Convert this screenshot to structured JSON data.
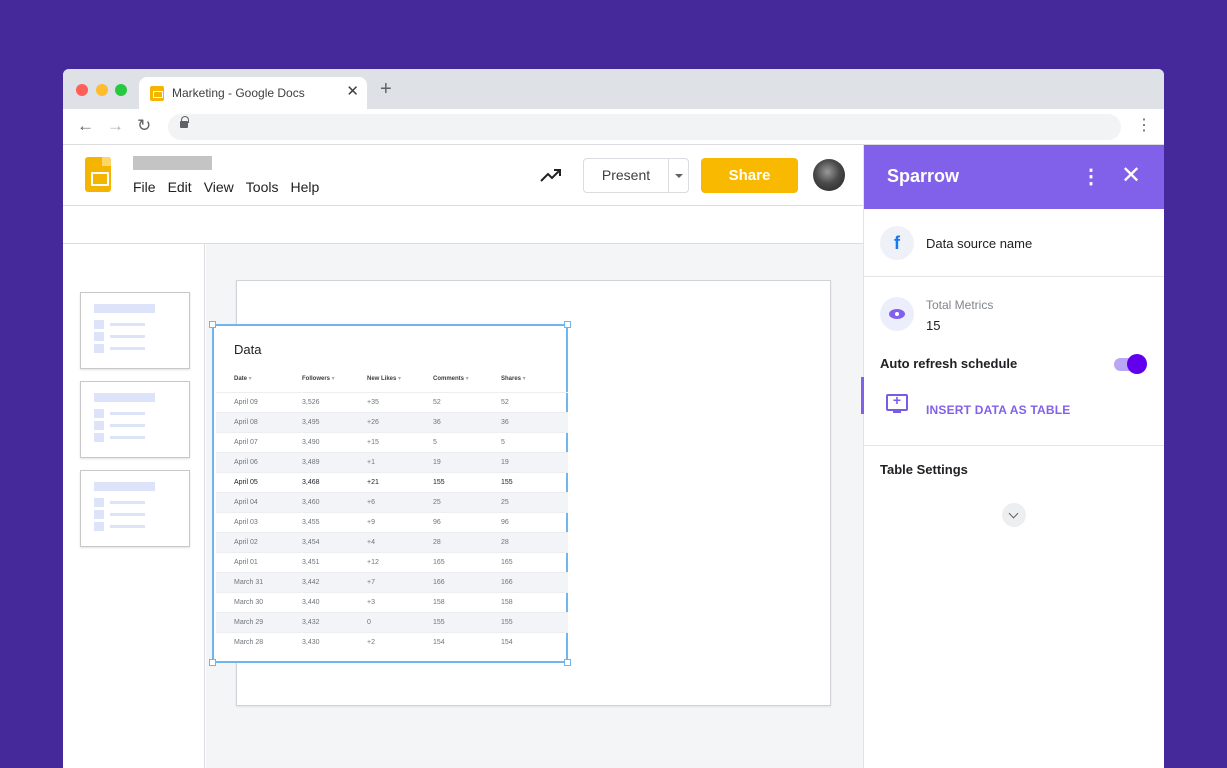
{
  "browser": {
    "tab_title": "Marketing - Google Docs",
    "tab_close": "✕",
    "new_tab": "+",
    "back": "←",
    "forward": "→",
    "reload": "↻",
    "menu": "⋮"
  },
  "docs": {
    "menu": [
      "File",
      "Edit",
      "View",
      "Tools",
      "Help"
    ],
    "present_label": "Present",
    "share_label": "Share"
  },
  "slide_table": {
    "title": "Data",
    "columns": [
      "Date",
      "Followers",
      "New Likes",
      "Comments",
      "Shares"
    ],
    "rows": [
      [
        "April 09",
        "3,526",
        "+35",
        "52",
        "52"
      ],
      [
        "April 08",
        "3,495",
        "+26",
        "36",
        "36"
      ],
      [
        "April 07",
        "3,490",
        "+15",
        "5",
        "5"
      ],
      [
        "April 06",
        "3,489",
        "+1",
        "19",
        "19"
      ],
      [
        "April 05",
        "3,468",
        "+21",
        "155",
        "155"
      ],
      [
        "April 04",
        "3,460",
        "+6",
        "25",
        "25"
      ],
      [
        "April 03",
        "3,455",
        "+9",
        "96",
        "96"
      ],
      [
        "April 02",
        "3,454",
        "+4",
        "28",
        "28"
      ],
      [
        "April 01",
        "3,451",
        "+12",
        "165",
        "165"
      ],
      [
        "March 31",
        "3,442",
        "+7",
        "166",
        "166"
      ],
      [
        "March 30",
        "3,440",
        "+3",
        "158",
        "158"
      ],
      [
        "March 29",
        "3,432",
        "0",
        "155",
        "155"
      ],
      [
        "March 28",
        "3,430",
        "+2",
        "154",
        "154"
      ]
    ]
  },
  "sparrow": {
    "title": "Sparrow",
    "kebab": "⋮",
    "close": "✕",
    "data_source_icon": "f",
    "data_source": "Data source name",
    "total_metrics_label": "Total Metrics",
    "total_metrics_value": "15",
    "auto_refresh_label": "Auto refresh schedule",
    "auto_refresh_on": true,
    "insert_label": "INSERT DATA AS TABLE",
    "table_settings_label": "Table Settings"
  },
  "colors": {
    "background": "#45299a",
    "sparrow_accent": "#8161e9",
    "share_button": "#f9b900",
    "selection": "#6fb6f1"
  }
}
